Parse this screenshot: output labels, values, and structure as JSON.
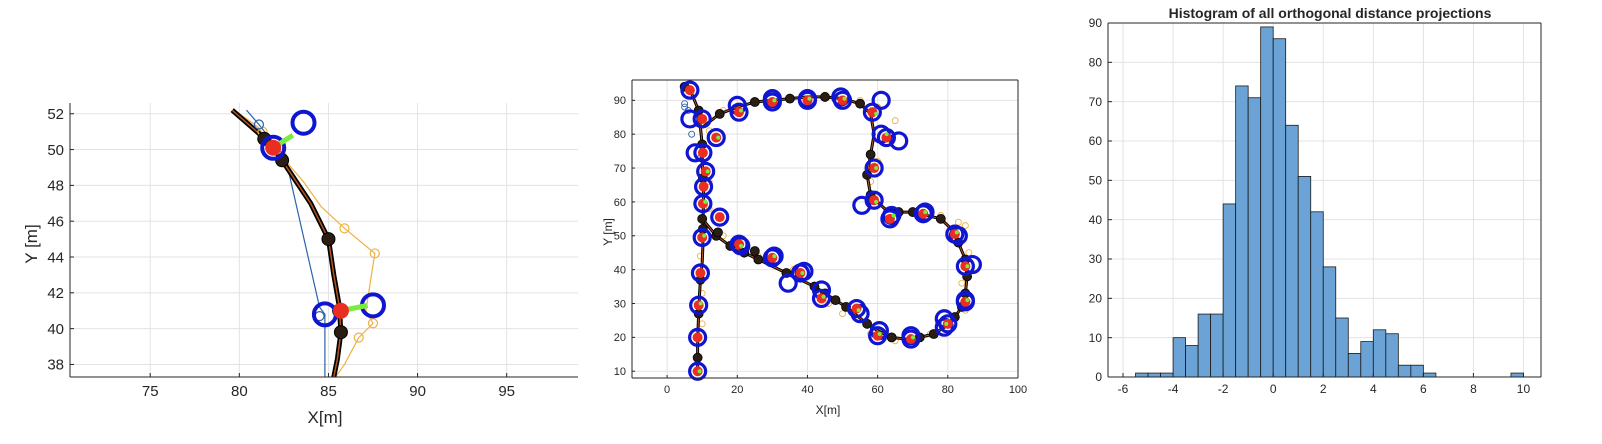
{
  "chart_data": [
    {
      "type": "line",
      "xlabel": "X[m]",
      "ylabel": "Y [m]",
      "xlim": [
        70.5,
        99
      ],
      "ylim": [
        37.3,
        52.6
      ],
      "xticks": [
        75,
        80,
        85,
        90,
        95
      ],
      "yticks": [
        38,
        40,
        42,
        44,
        46,
        48,
        50,
        52
      ],
      "grid": true,
      "colors": {
        "path": "#000000",
        "path_inner": "#b5561f",
        "orange": "#eeb243",
        "blue": "#2a62ad",
        "circle": "#0f15d1",
        "red": "#ea2f22",
        "green": "#79ec40"
      },
      "series": [
        {
          "role": "path",
          "x": [
            79.6,
            81.1,
            81.9,
            82.4,
            84.0,
            85.0,
            85.3,
            85.6,
            85.7,
            85.5,
            85.3
          ],
          "y": [
            52.2,
            50.9,
            50.1,
            49.4,
            47.0,
            45.0,
            43.0,
            41.3,
            39.8,
            38.3,
            37.3
          ]
        },
        {
          "role": "orange",
          "x": [
            79.7,
            81.0,
            82.4,
            83.6,
            84.6,
            85.9,
            87.6,
            87.1,
            87.5,
            86.7,
            85.9,
            85.4
          ],
          "y": [
            52.2,
            51.3,
            49.6,
            48.2,
            46.8,
            45.6,
            44.2,
            41.0,
            40.3,
            39.5,
            38.0,
            37.3
          ]
        },
        {
          "role": "blue",
          "x": [
            80.4,
            81.1,
            82.6,
            84.5,
            84.8,
            84.8
          ],
          "y": [
            52.2,
            51.4,
            49.5,
            41.2,
            40.8,
            37.3
          ]
        }
      ],
      "markers_black": [
        {
          "x": 81.4,
          "y": 50.6
        },
        {
          "x": 82.4,
          "y": 49.4
        },
        {
          "x": 85.0,
          "y": 45.0
        },
        {
          "x": 85.6,
          "y": 41.0
        },
        {
          "x": 85.7,
          "y": 39.8
        }
      ],
      "markers_orange": [
        {
          "x": 81.3,
          "y": 51.0
        },
        {
          "x": 82.4,
          "y": 49.6
        },
        {
          "x": 85.9,
          "y": 45.6
        },
        {
          "x": 87.6,
          "y": 44.2
        },
        {
          "x": 87.5,
          "y": 40.3
        },
        {
          "x": 86.7,
          "y": 39.5
        }
      ],
      "markers_blue": [
        {
          "x": 81.1,
          "y": 51.4
        },
        {
          "x": 84.5,
          "y": 40.7
        }
      ],
      "blue_circles": [
        {
          "x": 83.6,
          "y": 51.5
        },
        {
          "x": 84.8,
          "y": 40.8
        },
        {
          "x": 87.5,
          "y": 41.3
        },
        {
          "x": 81.9,
          "y": 50.1
        }
      ],
      "red_dots": [
        {
          "x": 81.9,
          "y": 50.1
        },
        {
          "x": 85.7,
          "y": 41.0
        }
      ],
      "green_segments": [
        {
          "x1": 81.9,
          "y1": 50.1,
          "x2": 83.0,
          "y2": 50.8
        },
        {
          "x1": 85.7,
          "y1": 41.0,
          "x2": 87.2,
          "y2": 41.3
        }
      ]
    },
    {
      "type": "line",
      "xlabel": "X[m]",
      "ylabel": "Y [m]",
      "xlim": [
        -10,
        100
      ],
      "ylim": [
        8,
        96
      ],
      "xticks": [
        0,
        20,
        40,
        60,
        80,
        100
      ],
      "yticks": [
        10,
        20,
        30,
        40,
        50,
        60,
        70,
        80,
        90
      ],
      "grid": true,
      "path": {
        "x": [
          5,
          7,
          9,
          9.5,
          10,
          10,
          10.2,
          10.4,
          10.3,
          10.2,
          10.2,
          10,
          9.5,
          9.2,
          9.0,
          8.8,
          8.7,
          8.7,
          8.7,
          8.7
        ],
        "y": [
          94,
          92,
          87,
          82,
          77,
          72,
          67,
          62,
          57,
          52,
          47,
          42,
          37,
          32,
          27,
          22,
          17,
          14,
          11,
          10
        ],
        "x2": [
          10,
          15,
          20,
          25,
          30,
          35,
          40,
          45,
          50,
          55,
          58,
          59,
          58,
          57,
          58,
          62,
          66,
          70,
          74,
          78,
          81,
          83,
          85,
          85.5,
          85,
          84,
          82,
          79,
          76,
          72,
          68,
          64,
          60,
          57,
          54,
          51,
          48,
          45,
          42,
          38,
          34,
          30,
          26,
          22,
          18,
          14,
          10
        ],
        "y2": [
          82,
          86,
          88,
          89.5,
          90,
          90.5,
          91,
          91,
          90.5,
          89,
          86,
          80,
          74,
          68,
          62,
          58,
          57,
          57,
          56,
          55,
          52,
          48,
          43,
          38,
          33,
          29,
          26,
          23,
          21,
          20,
          19.5,
          20,
          22,
          24,
          26.5,
          29,
          31,
          33,
          35,
          37,
          39,
          41,
          43,
          45,
          47,
          50,
          55
        ]
      },
      "blue_circles": [
        {
          "x": 8.7,
          "y": 10
        },
        {
          "x": 8.7,
          "y": 20
        },
        {
          "x": 9,
          "y": 29.5
        },
        {
          "x": 9.5,
          "y": 39
        },
        {
          "x": 10,
          "y": 49.5
        },
        {
          "x": 10.2,
          "y": 59.5
        },
        {
          "x": 10.4,
          "y": 64.5
        },
        {
          "x": 11,
          "y": 69
        },
        {
          "x": 10.2,
          "y": 74.5
        },
        {
          "x": 8,
          "y": 74.5
        },
        {
          "x": 6.5,
          "y": 84.5
        },
        {
          "x": 10,
          "y": 84.5
        },
        {
          "x": 6.5,
          "y": 93
        },
        {
          "x": 14,
          "y": 79
        },
        {
          "x": 15,
          "y": 55.5
        },
        {
          "x": 20,
          "y": 88.5
        },
        {
          "x": 20.5,
          "y": 86.5
        },
        {
          "x": 30,
          "y": 90.5
        },
        {
          "x": 30,
          "y": 89.5
        },
        {
          "x": 40,
          "y": 90.5
        },
        {
          "x": 40,
          "y": 90
        },
        {
          "x": 49.5,
          "y": 91
        },
        {
          "x": 50,
          "y": 90
        },
        {
          "x": 58.5,
          "y": 86.5
        },
        {
          "x": 61,
          "y": 90
        },
        {
          "x": 61,
          "y": 80
        },
        {
          "x": 62.5,
          "y": 79
        },
        {
          "x": 66,
          "y": 78
        },
        {
          "x": 59,
          "y": 70
        },
        {
          "x": 59,
          "y": 60.5
        },
        {
          "x": 55.5,
          "y": 59
        },
        {
          "x": 64,
          "y": 56
        },
        {
          "x": 63.5,
          "y": 55
        },
        {
          "x": 73.5,
          "y": 57
        },
        {
          "x": 73,
          "y": 56.5
        },
        {
          "x": 82,
          "y": 50.5
        },
        {
          "x": 83,
          "y": 50
        },
        {
          "x": 85,
          "y": 41
        },
        {
          "x": 87,
          "y": 41.5
        },
        {
          "x": 85,
          "y": 31
        },
        {
          "x": 85,
          "y": 30.5
        },
        {
          "x": 79,
          "y": 25.5
        },
        {
          "x": 80,
          "y": 24
        },
        {
          "x": 79,
          "y": 23
        },
        {
          "x": 69.5,
          "y": 20.5
        },
        {
          "x": 69.5,
          "y": 19.5
        },
        {
          "x": 60,
          "y": 20.5
        },
        {
          "x": 60.5,
          "y": 22
        },
        {
          "x": 55,
          "y": 27
        },
        {
          "x": 54,
          "y": 28.5
        },
        {
          "x": 44,
          "y": 31.5
        },
        {
          "x": 44,
          "y": 34
        },
        {
          "x": 39,
          "y": 39.5
        },
        {
          "x": 38,
          "y": 39
        },
        {
          "x": 34.5,
          "y": 36
        },
        {
          "x": 30.5,
          "y": 44
        },
        {
          "x": 30,
          "y": 43.5
        },
        {
          "x": 20.5,
          "y": 47.5
        },
        {
          "x": 21,
          "y": 47
        }
      ],
      "orange_markers": [
        {
          "x": 10,
          "y": 24
        },
        {
          "x": 10,
          "y": 33
        },
        {
          "x": 9.5,
          "y": 44
        },
        {
          "x": 12,
          "y": 58
        },
        {
          "x": 12,
          "y": 66
        },
        {
          "x": 12,
          "y": 81
        },
        {
          "x": 16,
          "y": 87
        },
        {
          "x": 25,
          "y": 90
        },
        {
          "x": 35,
          "y": 91
        },
        {
          "x": 45,
          "y": 91.5
        },
        {
          "x": 55,
          "y": 90
        },
        {
          "x": 60,
          "y": 88
        },
        {
          "x": 65,
          "y": 84
        },
        {
          "x": 64,
          "y": 78
        },
        {
          "x": 60,
          "y": 72
        },
        {
          "x": 58,
          "y": 66
        },
        {
          "x": 66,
          "y": 56
        },
        {
          "x": 78,
          "y": 56
        },
        {
          "x": 83,
          "y": 54
        },
        {
          "x": 85,
          "y": 53
        },
        {
          "x": 86,
          "y": 45
        },
        {
          "x": 84,
          "y": 36
        },
        {
          "x": 85,
          "y": 28
        },
        {
          "x": 75,
          "y": 21
        },
        {
          "x": 65,
          "y": 19
        },
        {
          "x": 58,
          "y": 21
        },
        {
          "x": 50,
          "y": 27
        },
        {
          "x": 44,
          "y": 33
        },
        {
          "x": 46,
          "y": 30
        },
        {
          "x": 36,
          "y": 40
        },
        {
          "x": 26,
          "y": 44
        },
        {
          "x": 16,
          "y": 50
        }
      ],
      "blue_markers": [
        {
          "x": 5,
          "y": 89
        },
        {
          "x": 5,
          "y": 88
        },
        {
          "x": 6,
          "y": 87
        },
        {
          "x": 7,
          "y": 80
        },
        {
          "x": 9.5,
          "y": 73
        }
      ],
      "red_dots": [
        {
          "x": 8.7,
          "y": 10
        },
        {
          "x": 8.7,
          "y": 20
        },
        {
          "x": 9,
          "y": 29.5
        },
        {
          "x": 9.5,
          "y": 39
        },
        {
          "x": 10,
          "y": 49.5
        },
        {
          "x": 10.2,
          "y": 59.5
        },
        {
          "x": 10.4,
          "y": 64.5
        },
        {
          "x": 11,
          "y": 69
        },
        {
          "x": 10.2,
          "y": 74.5
        },
        {
          "x": 10,
          "y": 84.5
        },
        {
          "x": 6.5,
          "y": 93
        },
        {
          "x": 14,
          "y": 79
        },
        {
          "x": 15,
          "y": 55.5
        },
        {
          "x": 20.5,
          "y": 86.5
        },
        {
          "x": 30,
          "y": 89.5
        },
        {
          "x": 40,
          "y": 90
        },
        {
          "x": 50,
          "y": 90
        },
        {
          "x": 58.5,
          "y": 86.5
        },
        {
          "x": 62.5,
          "y": 79
        },
        {
          "x": 59,
          "y": 70
        },
        {
          "x": 59,
          "y": 60.5
        },
        {
          "x": 63.5,
          "y": 55
        },
        {
          "x": 73,
          "y": 56.5
        },
        {
          "x": 82,
          "y": 50.5
        },
        {
          "x": 85,
          "y": 41
        },
        {
          "x": 85,
          "y": 30.5
        },
        {
          "x": 80,
          "y": 24
        },
        {
          "x": 69.5,
          "y": 19.5
        },
        {
          "x": 60,
          "y": 20.5
        },
        {
          "x": 54,
          "y": 28.5
        },
        {
          "x": 44,
          "y": 31.5
        },
        {
          "x": 38,
          "y": 39
        },
        {
          "x": 30,
          "y": 43.5
        },
        {
          "x": 20.5,
          "y": 47.5
        }
      ],
      "black_dots": [
        {
          "x": 5,
          "y": 94
        },
        {
          "x": 9,
          "y": 87
        },
        {
          "x": 10,
          "y": 77
        },
        {
          "x": 10.2,
          "y": 67
        },
        {
          "x": 10.2,
          "y": 52
        },
        {
          "x": 9.5,
          "y": 37
        },
        {
          "x": 9,
          "y": 27
        },
        {
          "x": 8.7,
          "y": 14
        },
        {
          "x": 15,
          "y": 86
        },
        {
          "x": 25,
          "y": 89.5
        },
        {
          "x": 35,
          "y": 90.5
        },
        {
          "x": 45,
          "y": 91
        },
        {
          "x": 55,
          "y": 89
        },
        {
          "x": 58,
          "y": 74
        },
        {
          "x": 57,
          "y": 68
        },
        {
          "x": 58,
          "y": 62
        },
        {
          "x": 66,
          "y": 57
        },
        {
          "x": 70,
          "y": 57
        },
        {
          "x": 78,
          "y": 55
        },
        {
          "x": 83,
          "y": 48
        },
        {
          "x": 85,
          "y": 43
        },
        {
          "x": 85.5,
          "y": 38
        },
        {
          "x": 85,
          "y": 33
        },
        {
          "x": 84,
          "y": 29
        },
        {
          "x": 82,
          "y": 26
        },
        {
          "x": 76,
          "y": 21
        },
        {
          "x": 72,
          "y": 20
        },
        {
          "x": 64,
          "y": 20
        },
        {
          "x": 57,
          "y": 24
        },
        {
          "x": 51,
          "y": 29
        },
        {
          "x": 48,
          "y": 31
        },
        {
          "x": 45,
          "y": 33
        },
        {
          "x": 42,
          "y": 35
        },
        {
          "x": 34,
          "y": 39
        },
        {
          "x": 26,
          "y": 43
        },
        {
          "x": 22,
          "y": 45
        },
        {
          "x": 18,
          "y": 47
        },
        {
          "x": 14,
          "y": 50
        },
        {
          "x": 10,
          "y": 55
        },
        {
          "x": 14.5,
          "y": 51
        },
        {
          "x": 25,
          "y": 45.5
        }
      ],
      "green_points": [
        {
          "x": 8.7,
          "y": 10
        },
        {
          "x": 9,
          "y": 30
        },
        {
          "x": 10,
          "y": 50
        },
        {
          "x": 10.3,
          "y": 60
        },
        {
          "x": 11,
          "y": 69
        },
        {
          "x": 14,
          "y": 79
        },
        {
          "x": 20.5,
          "y": 87
        },
        {
          "x": 30,
          "y": 90
        },
        {
          "x": 40,
          "y": 90.5
        },
        {
          "x": 50,
          "y": 90.5
        },
        {
          "x": 59,
          "y": 86
        },
        {
          "x": 62,
          "y": 80
        },
        {
          "x": 59,
          "y": 70
        },
        {
          "x": 59,
          "y": 60
        },
        {
          "x": 64,
          "y": 56
        },
        {
          "x": 73,
          "y": 57
        },
        {
          "x": 82,
          "y": 51
        },
        {
          "x": 85,
          "y": 41
        },
        {
          "x": 85,
          "y": 31
        },
        {
          "x": 79,
          "y": 24
        },
        {
          "x": 69.5,
          "y": 20
        },
        {
          "x": 60,
          "y": 21
        },
        {
          "x": 54,
          "y": 28
        },
        {
          "x": 44,
          "y": 32
        },
        {
          "x": 38,
          "y": 39
        },
        {
          "x": 30,
          "y": 44
        },
        {
          "x": 20.5,
          "y": 47
        }
      ]
    },
    {
      "type": "bar",
      "title": "Histogram of all orthogonal distance projections",
      "xlabel": "",
      "ylabel": "",
      "xlim": [
        -6.6,
        10.7
      ],
      "ylim": [
        0,
        90
      ],
      "xticks": [
        -6,
        -4,
        -2,
        0,
        2,
        4,
        6,
        8,
        10
      ],
      "yticks": [
        0,
        10,
        20,
        30,
        40,
        50,
        60,
        70,
        80,
        90
      ],
      "grid": true,
      "bin_width": 0.5,
      "bin_starts": [
        -5.5,
        -5.0,
        -4.5,
        -4.0,
        -3.5,
        -3.0,
        -2.5,
        -2.0,
        -1.5,
        -1.0,
        -0.5,
        0.0,
        0.5,
        1.0,
        1.5,
        2.0,
        2.5,
        3.0,
        3.5,
        4.0,
        4.5,
        5.0,
        5.5,
        6.0,
        6.5,
        7.0,
        7.5,
        8.0,
        8.5,
        9.0,
        9.5
      ],
      "values": [
        1,
        1,
        1,
        10,
        8,
        16,
        16,
        44,
        74,
        71,
        89,
        86,
        64,
        51,
        42,
        28,
        15,
        6,
        9,
        12,
        11,
        3,
        3,
        1,
        0,
        0,
        0,
        0,
        0,
        0,
        1
      ],
      "bar_color": "#6ba3d6",
      "edge_color": "#1a1a1a"
    }
  ]
}
